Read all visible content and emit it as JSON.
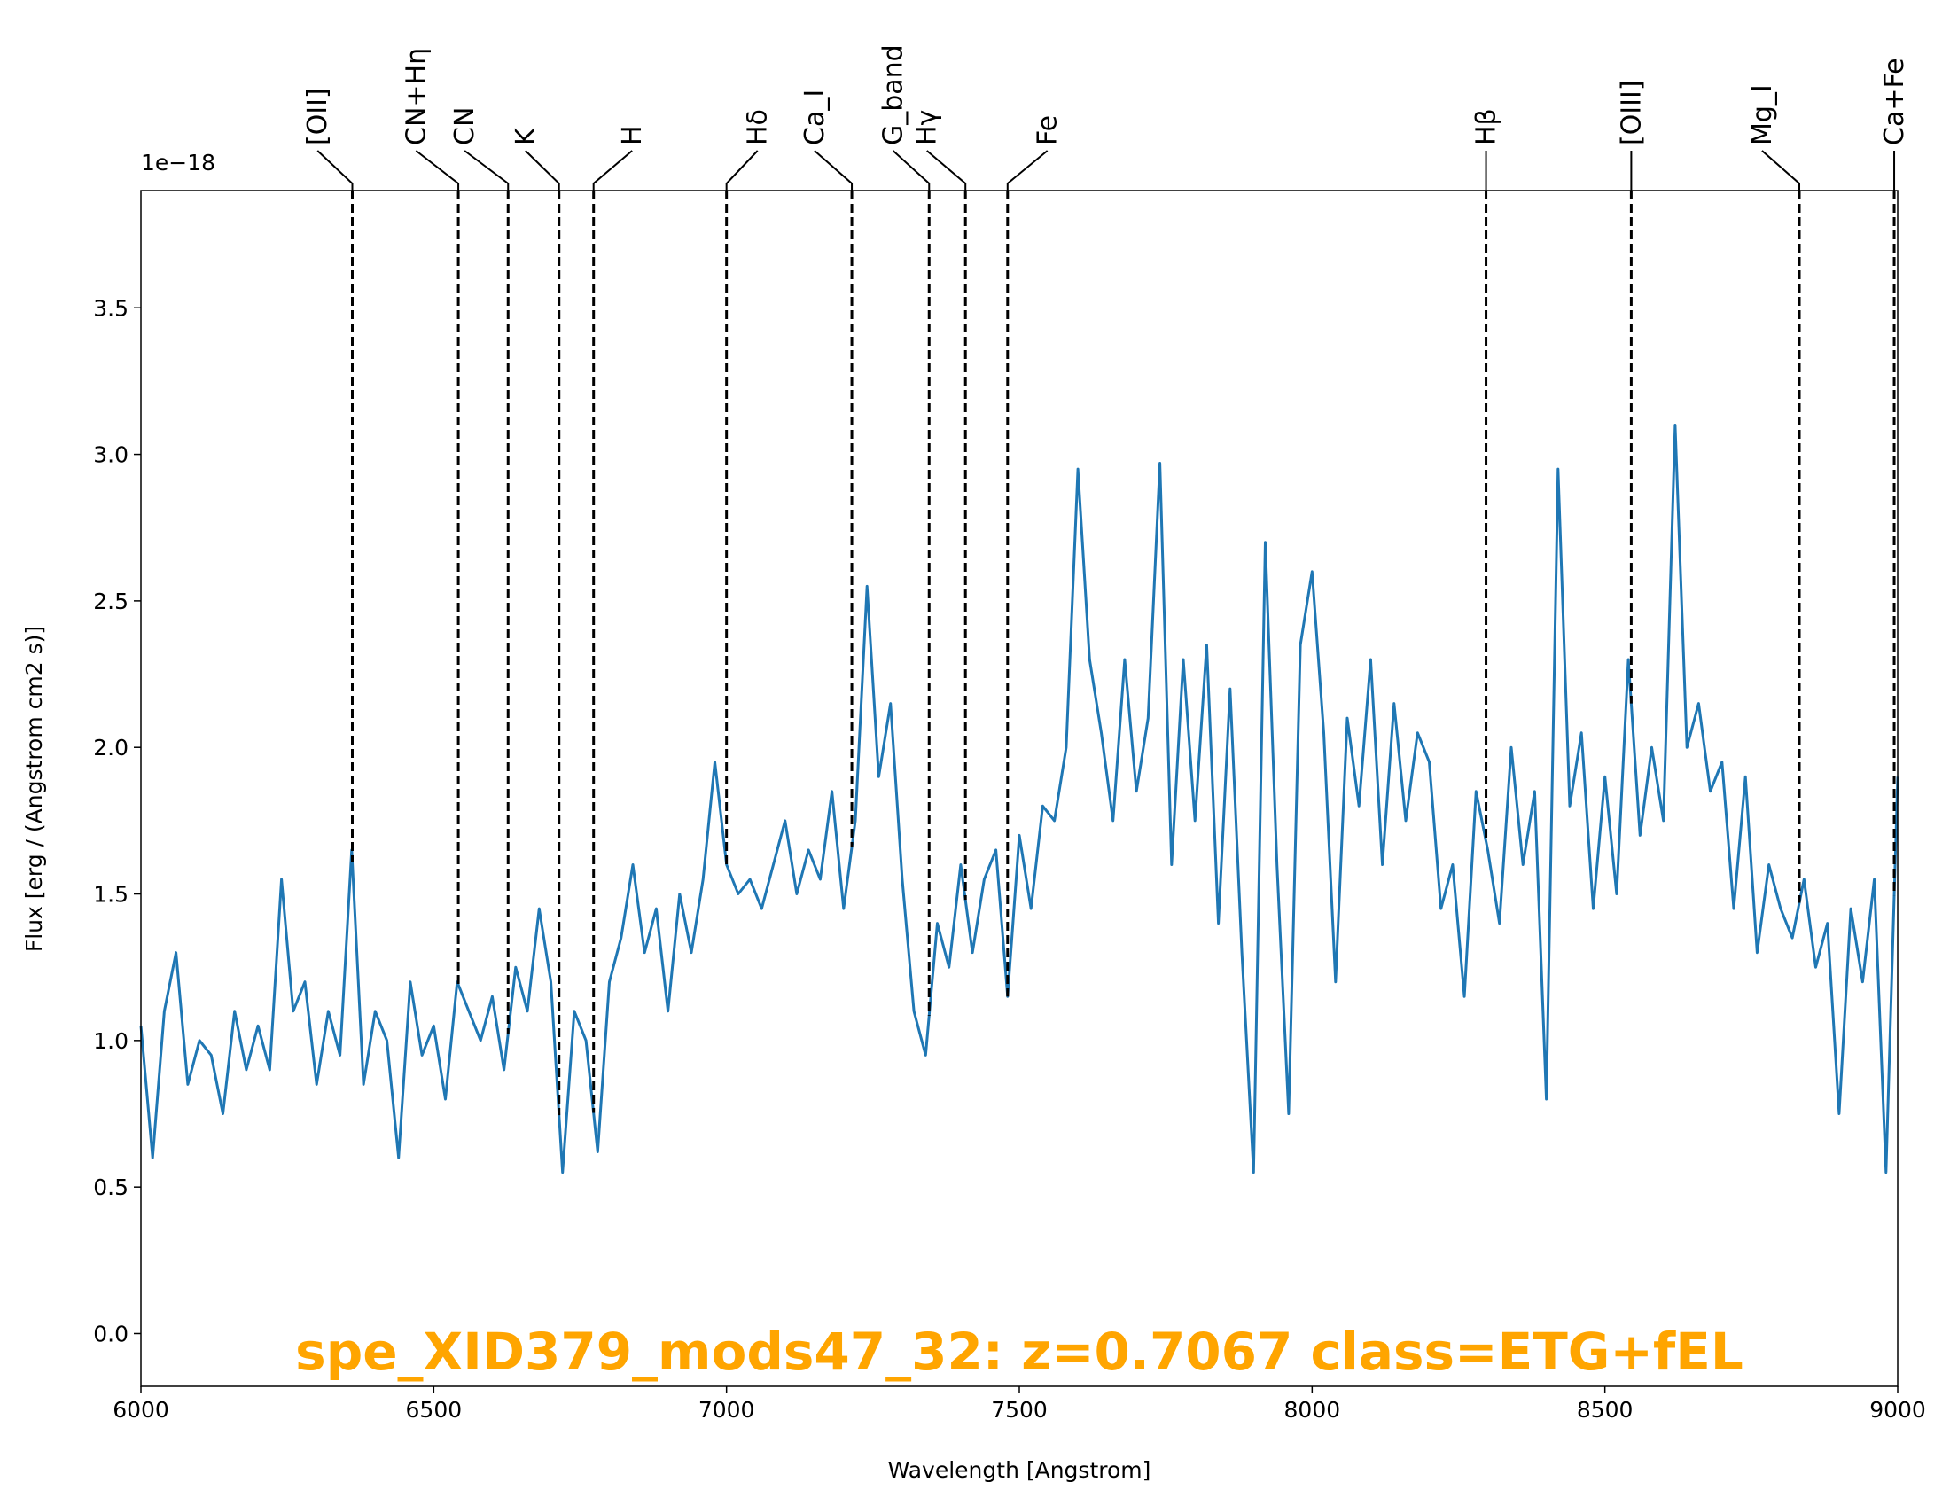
{
  "chart_data": {
    "type": "line",
    "title": "spe_XID379_mods47_32: z=0.7067 class=ETG+fEL",
    "title_color": "#ffa500",
    "xlabel": "Wavelength [Angstrom]",
    "ylabel": "Flux [erg / (Angstrom cm2 s)]",
    "y_offset_label": "1e−18",
    "color": "#1f77b4",
    "xlim": [
      6000,
      9000
    ],
    "ylim": [
      -0.18,
      3.9
    ],
    "xticks": [
      6000,
      6500,
      7000,
      7500,
      8000,
      8500,
      9000
    ],
    "yticks": [
      {
        "value": 0,
        "label": "0.0"
      },
      0.5,
      {
        "value": 1,
        "label": "1.0"
      },
      1.5,
      {
        "value": 2,
        "label": "2.0"
      },
      2.5,
      {
        "value": 3,
        "label": "3.0"
      },
      3.5
    ],
    "lines": [
      {
        "label": "[OII]",
        "wavelength": 6361
      },
      {
        "label": "CN+Hη",
        "wavelength": 6542
      },
      {
        "label": "CN",
        "wavelength": 6627
      },
      {
        "label": "K",
        "wavelength": 6714
      },
      {
        "label": "H",
        "wavelength": 6773
      },
      {
        "label": "Hδ",
        "wavelength": 7000
      },
      {
        "label": "Ca_I",
        "wavelength": 7214
      },
      {
        "label": "G_band",
        "wavelength": 7346
      },
      {
        "label": "Hγ",
        "wavelength": 7408
      },
      {
        "label": "Fe",
        "wavelength": 7480
      },
      {
        "label": "Hβ",
        "wavelength": 8297
      },
      {
        "label": "[OIII]",
        "wavelength": 8545
      },
      {
        "label": "Mg_I",
        "wavelength": 8832
      },
      {
        "label": "Ca+Fe",
        "wavelength": 8994
      }
    ],
    "x": [
      6000,
      6020,
      6040,
      6060,
      6080,
      6100,
      6120,
      6140,
      6160,
      6180,
      6200,
      6220,
      6240,
      6260,
      6280,
      6300,
      6320,
      6340,
      6360,
      6380,
      6400,
      6420,
      6440,
      6460,
      6480,
      6500,
      6520,
      6540,
      6560,
      6580,
      6600,
      6620,
      6640,
      6660,
      6680,
      6700,
      6720,
      6740,
      6760,
      6780,
      6800,
      6820,
      6840,
      6860,
      6880,
      6900,
      6920,
      6940,
      6960,
      6980,
      7000,
      7020,
      7040,
      7060,
      7080,
      7100,
      7120,
      7140,
      7160,
      7180,
      7200,
      7220,
      7240,
      7260,
      7280,
      7300,
      7320,
      7340,
      7360,
      7380,
      7400,
      7420,
      7440,
      7460,
      7480,
      7500,
      7520,
      7540,
      7560,
      7580,
      7600,
      7620,
      7640,
      7660,
      7680,
      7700,
      7720,
      7740,
      7760,
      7780,
      7800,
      7820,
      7840,
      7860,
      7880,
      7900,
      7920,
      7940,
      7960,
      7980,
      8000,
      8020,
      8040,
      8060,
      8080,
      8100,
      8120,
      8140,
      8160,
      8180,
      8200,
      8220,
      8240,
      8260,
      8280,
      8300,
      8320,
      8340,
      8360,
      8380,
      8400,
      8420,
      8440,
      8460,
      8480,
      8500,
      8520,
      8540,
      8560,
      8580,
      8600,
      8620,
      8640,
      8660,
      8680,
      8700,
      8720,
      8740,
      8760,
      8780,
      8800,
      8820,
      8840,
      8860,
      8880,
      8900,
      8920,
      8940,
      8960,
      8980,
      9000
    ],
    "values": [
      1.05,
      0.6,
      1.1,
      1.3,
      0.85,
      1.0,
      0.95,
      0.75,
      1.1,
      0.9,
      1.05,
      0.9,
      1.55,
      1.1,
      1.2,
      0.85,
      1.1,
      0.95,
      1.65,
      0.85,
      1.1,
      1.0,
      0.6,
      1.2,
      0.95,
      1.05,
      0.8,
      1.2,
      1.1,
      1.0,
      1.15,
      0.9,
      1.25,
      1.1,
      1.45,
      1.2,
      0.55,
      1.1,
      1.0,
      0.62,
      1.2,
      1.35,
      1.6,
      1.3,
      1.45,
      1.1,
      1.5,
      1.3,
      1.55,
      1.95,
      1.6,
      1.5,
      1.55,
      1.45,
      1.6,
      1.75,
      1.5,
      1.65,
      1.55,
      1.85,
      1.45,
      1.75,
      2.55,
      1.9,
      2.15,
      1.55,
      1.1,
      0.95,
      1.4,
      1.25,
      1.6,
      1.3,
      1.55,
      1.65,
      1.15,
      1.7,
      1.45,
      1.8,
      1.75,
      2.0,
      2.95,
      2.3,
      2.05,
      1.75,
      2.3,
      1.85,
      2.1,
      2.97,
      1.6,
      2.3,
      1.75,
      2.35,
      1.4,
      2.2,
      1.3,
      0.55,
      2.7,
      1.6,
      0.75,
      2.35,
      2.6,
      2.05,
      1.2,
      2.1,
      1.8,
      2.3,
      1.6,
      2.15,
      1.75,
      2.05,
      1.95,
      1.45,
      1.6,
      1.15,
      1.85,
      1.65,
      1.4,
      2.0,
      1.6,
      1.85,
      0.8,
      2.95,
      1.8,
      2.05,
      1.45,
      1.9,
      1.5,
      2.3,
      1.7,
      2.0,
      1.75,
      3.1,
      2.0,
      2.15,
      1.85,
      1.95,
      1.45,
      1.9,
      1.3,
      1.6,
      1.45,
      1.35,
      1.55,
      1.25,
      1.4,
      0.75,
      1.45,
      1.2,
      1.55,
      0.55,
      1.9
    ]
  }
}
